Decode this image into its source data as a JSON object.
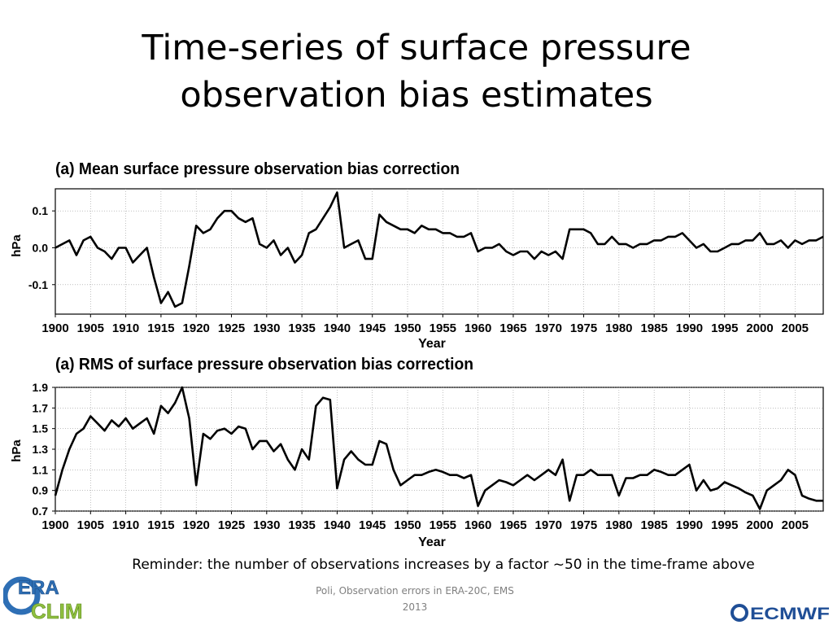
{
  "slide": {
    "title_line1": "Time-series of surface pressure",
    "title_line2": "observation bias estimates",
    "reminder": "Reminder: the number of observations increases by a factor ~50 in the time-frame above",
    "footer_line1": "Poli, Observation errors in ERA-20C, EMS",
    "footer_line2": "2013",
    "logo_left_text1": "ERA",
    "logo_left_text2": "CLIM",
    "logo_right_text": "ECMWF"
  },
  "colors": {
    "series": "#000000",
    "grid": "#999999",
    "era_blue": "#2e6fb5",
    "era_green": "#8fbf3f",
    "ecmwf_blue": "#1f4e96"
  },
  "chart_data": [
    {
      "type": "line",
      "title": "(a) Mean surface pressure observation bias correction",
      "xlabel": "Year",
      "ylabel": "hPa",
      "xlim": [
        1900,
        2009
      ],
      "ylim": [
        -0.18,
        0.16
      ],
      "x_ticks": [
        1900,
        1905,
        1910,
        1915,
        1920,
        1925,
        1930,
        1935,
        1940,
        1945,
        1950,
        1955,
        1960,
        1965,
        1970,
        1975,
        1980,
        1985,
        1990,
        1995,
        2000,
        2005
      ],
      "y_ticks": [
        0.1,
        0.0,
        -0.1
      ],
      "y_tick_labels": [
        "0.1",
        "0.0",
        "-0.1"
      ],
      "grid": true,
      "x": [
        1900,
        1901,
        1902,
        1903,
        1904,
        1905,
        1906,
        1907,
        1908,
        1909,
        1910,
        1911,
        1912,
        1913,
        1914,
        1915,
        1916,
        1917,
        1918,
        1919,
        1920,
        1921,
        1922,
        1923,
        1924,
        1925,
        1926,
        1927,
        1928,
        1929,
        1930,
        1931,
        1932,
        1933,
        1934,
        1935,
        1936,
        1937,
        1938,
        1939,
        1940,
        1941,
        1942,
        1943,
        1944,
        1945,
        1946,
        1947,
        1948,
        1949,
        1950,
        1951,
        1952,
        1953,
        1954,
        1955,
        1956,
        1957,
        1958,
        1959,
        1960,
        1961,
        1962,
        1963,
        1964,
        1965,
        1966,
        1967,
        1968,
        1969,
        1970,
        1971,
        1972,
        1973,
        1974,
        1975,
        1976,
        1977,
        1978,
        1979,
        1980,
        1981,
        1982,
        1983,
        1984,
        1985,
        1986,
        1987,
        1988,
        1989,
        1990,
        1991,
        1992,
        1993,
        1994,
        1995,
        1996,
        1997,
        1998,
        1999,
        2000,
        2001,
        2002,
        2003,
        2004,
        2005,
        2006,
        2007,
        2008,
        2009
      ],
      "series": [
        {
          "values": [
            0.0,
            0.01,
            0.02,
            -0.02,
            0.02,
            0.03,
            0.0,
            -0.01,
            -0.03,
            0.0,
            0.0,
            -0.04,
            -0.02,
            0.0,
            -0.08,
            -0.15,
            -0.12,
            -0.16,
            -0.15,
            -0.05,
            0.06,
            0.04,
            0.05,
            0.08,
            0.1,
            0.1,
            0.08,
            0.07,
            0.08,
            0.01,
            0.0,
            0.02,
            -0.02,
            0.0,
            -0.04,
            -0.02,
            0.04,
            0.05,
            0.08,
            0.11,
            0.15,
            0.0,
            0.01,
            0.02,
            -0.03,
            -0.03,
            0.09,
            0.07,
            0.06,
            0.05,
            0.05,
            0.04,
            0.06,
            0.05,
            0.05,
            0.04,
            0.04,
            0.03,
            0.03,
            0.04,
            -0.01,
            0.0,
            0.0,
            0.01,
            -0.01,
            -0.02,
            -0.01,
            -0.01,
            -0.03,
            -0.01,
            -0.02,
            -0.01,
            -0.03,
            0.05,
            0.05,
            0.05,
            0.04,
            0.01,
            0.01,
            0.03,
            0.01,
            0.01,
            0.0,
            0.01,
            0.01,
            0.02,
            0.02,
            0.03,
            0.03,
            0.04,
            0.02,
            0.0,
            0.01,
            -0.01,
            -0.01,
            0.0,
            0.01,
            0.01,
            0.02,
            0.02,
            0.04,
            0.01,
            0.01,
            0.02,
            0.0,
            0.02,
            0.01,
            0.02,
            0.02,
            0.03
          ]
        }
      ]
    },
    {
      "type": "line",
      "title": "(a) RMS of surface pressure observation bias correction",
      "xlabel": "Year",
      "ylabel": "hPa",
      "xlim": [
        1900,
        2009
      ],
      "ylim": [
        0.7,
        1.9
      ],
      "x_ticks": [
        1900,
        1905,
        1910,
        1915,
        1920,
        1925,
        1930,
        1935,
        1940,
        1945,
        1950,
        1955,
        1960,
        1965,
        1970,
        1975,
        1980,
        1985,
        1990,
        1995,
        2000,
        2005
      ],
      "y_ticks": [
        1.9,
        1.7,
        1.5,
        1.3,
        1.1,
        0.9,
        0.7
      ],
      "y_tick_labels": [
        "1.9",
        "1.7",
        "1.5",
        "1.3",
        "1.1",
        "0.9",
        "0.7"
      ],
      "grid": true,
      "x": [
        1900,
        1901,
        1902,
        1903,
        1904,
        1905,
        1906,
        1907,
        1908,
        1909,
        1910,
        1911,
        1912,
        1913,
        1914,
        1915,
        1916,
        1917,
        1918,
        1919,
        1920,
        1921,
        1922,
        1923,
        1924,
        1925,
        1926,
        1927,
        1928,
        1929,
        1930,
        1931,
        1932,
        1933,
        1934,
        1935,
        1936,
        1937,
        1938,
        1939,
        1940,
        1941,
        1942,
        1943,
        1944,
        1945,
        1946,
        1947,
        1948,
        1949,
        1950,
        1951,
        1952,
        1953,
        1954,
        1955,
        1956,
        1957,
        1958,
        1959,
        1960,
        1961,
        1962,
        1963,
        1964,
        1965,
        1966,
        1967,
        1968,
        1969,
        1970,
        1971,
        1972,
        1973,
        1974,
        1975,
        1976,
        1977,
        1978,
        1979,
        1980,
        1981,
        1982,
        1983,
        1984,
        1985,
        1986,
        1987,
        1988,
        1989,
        1990,
        1991,
        1992,
        1993,
        1994,
        1995,
        1996,
        1997,
        1998,
        1999,
        2000,
        2001,
        2002,
        2003,
        2004,
        2005,
        2006,
        2007,
        2008,
        2009
      ],
      "series": [
        {
          "values": [
            0.85,
            1.1,
            1.3,
            1.45,
            1.5,
            1.62,
            1.55,
            1.48,
            1.58,
            1.52,
            1.6,
            1.5,
            1.55,
            1.6,
            1.45,
            1.72,
            1.65,
            1.75,
            1.9,
            1.6,
            0.95,
            1.45,
            1.4,
            1.48,
            1.5,
            1.45,
            1.52,
            1.5,
            1.3,
            1.38,
            1.38,
            1.28,
            1.35,
            1.2,
            1.1,
            1.3,
            1.2,
            1.72,
            1.8,
            1.78,
            0.92,
            1.2,
            1.28,
            1.2,
            1.15,
            1.15,
            1.38,
            1.35,
            1.1,
            0.95,
            1.0,
            1.05,
            1.05,
            1.08,
            1.1,
            1.08,
            1.05,
            1.05,
            1.02,
            1.05,
            0.75,
            0.9,
            0.95,
            1.0,
            0.98,
            0.95,
            1.0,
            1.05,
            1.0,
            1.05,
            1.1,
            1.05,
            1.2,
            0.8,
            1.05,
            1.05,
            1.1,
            1.05,
            1.05,
            1.05,
            0.85,
            1.02,
            1.02,
            1.05,
            1.05,
            1.1,
            1.08,
            1.05,
            1.05,
            1.1,
            1.15,
            0.9,
            1.0,
            0.9,
            0.92,
            0.98,
            0.95,
            0.92,
            0.88,
            0.85,
            0.72,
            0.9,
            0.95,
            1.0,
            1.1,
            1.05,
            0.85,
            0.82,
            0.8,
            0.8
          ]
        }
      ]
    }
  ]
}
